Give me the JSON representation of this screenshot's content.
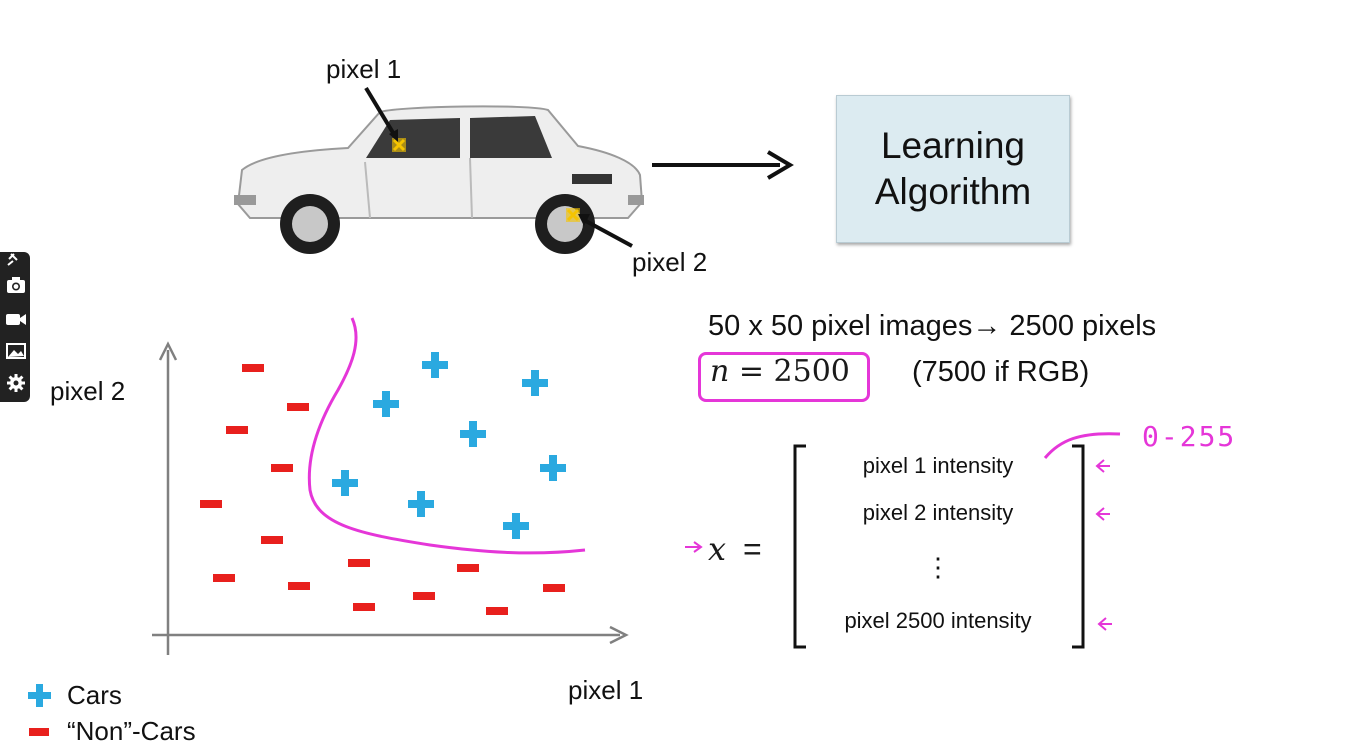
{
  "diagram": {
    "label_pixel1_top": "pixel 1",
    "label_pixel2_top": "pixel 2",
    "learning_algorithm": [
      "Learning",
      "Algorithm"
    ]
  },
  "plot": {
    "y_axis_label": "pixel 2",
    "x_axis_label": "pixel 1",
    "legend": {
      "cars": "Cars",
      "non_cars": "“Non”-Cars"
    },
    "colors": {
      "cars": "#2aa9e0",
      "non_cars": "#e8201d",
      "boundary": "#e536d8",
      "axis": "#808080"
    },
    "cars_points": [
      [
        435,
        365
      ],
      [
        535,
        383
      ],
      [
        386,
        404
      ],
      [
        473,
        434
      ],
      [
        553,
        468
      ],
      [
        345,
        483
      ],
      [
        421,
        504
      ],
      [
        516,
        526
      ]
    ],
    "noncars_points": [
      [
        253,
        368
      ],
      [
        298,
        407
      ],
      [
        237,
        430
      ],
      [
        282,
        468
      ],
      [
        211,
        504
      ],
      [
        272,
        540
      ],
      [
        224,
        578
      ],
      [
        299,
        586
      ],
      [
        359,
        563
      ],
      [
        468,
        568
      ],
      [
        554,
        588
      ],
      [
        364,
        607
      ],
      [
        424,
        596
      ],
      [
        497,
        611
      ]
    ]
  },
  "text": {
    "images_line": "50 x 50 pixel images→ 2500 pixels",
    "n_var": "n",
    "n_equals": "= 2500",
    "rgb_note": "(7500 if RGB)",
    "x_var": "x",
    "x_equals": "=",
    "handwritten_range": "0-255"
  },
  "vector": {
    "rows": [
      "pixel 1 intensity",
      "pixel 2 intensity",
      "⋮",
      "pixel 2500 intensity"
    ]
  },
  "toolbar": {
    "icons": [
      "pin-icon",
      "camera-icon",
      "video-icon",
      "image-icon",
      "gear-icon"
    ]
  }
}
